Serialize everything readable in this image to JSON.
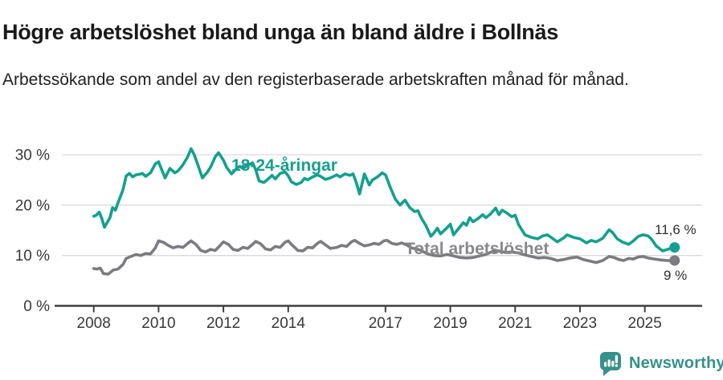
{
  "header": {
    "title": "Högre arbetslöshet bland unga än bland äldre i Bollnäs",
    "subtitle": "Arbetssökande som andel av den registerbaserade arbetskraften månad för månad."
  },
  "footer": {
    "brand": "Newsworthy",
    "brand_color": "#35918a"
  },
  "colors": {
    "accent_teal": "#13a08f",
    "line_gray": "#7b7b80",
    "grid": "#d9d9d9",
    "axis": "#3f3f3f",
    "tick_text": "#383838"
  },
  "chart_data": {
    "type": "line",
    "title": "Högre arbetslöshet bland unga än bland äldre i Bollnäs",
    "xlabel": "",
    "ylabel": "",
    "unit": "%",
    "grid": "horizontal",
    "legend_position": "inline-labels",
    "x_axis": {
      "min": 2007.7,
      "max": 2026.4,
      "ticks": [
        {
          "v": 2008,
          "label": "2008"
        },
        {
          "v": 2010,
          "label": "2010"
        },
        {
          "v": 2012,
          "label": "2012"
        },
        {
          "v": 2014,
          "label": "2014"
        },
        {
          "v": 2017,
          "label": "2017"
        },
        {
          "v": 2019,
          "label": "2019"
        },
        {
          "v": 2021,
          "label": "2021"
        },
        {
          "v": 2023,
          "label": "2023"
        },
        {
          "v": 2025,
          "label": "2025"
        }
      ]
    },
    "y_axis": {
      "min": 0,
      "max": 33,
      "ticks": [
        {
          "v": 0,
          "label": "0 %"
        },
        {
          "v": 10,
          "label": "10 %"
        },
        {
          "v": 20,
          "label": "20 %"
        },
        {
          "v": 30,
          "label": "30 %"
        }
      ]
    },
    "series": [
      {
        "name": "Total arbetslöshet",
        "color": "#7b7b80",
        "end_label": "9 %",
        "end_value": 9.0,
        "points": [
          [
            2008.0,
            7.4
          ],
          [
            2008.1,
            7.3
          ],
          [
            2008.2,
            7.5
          ],
          [
            2008.3,
            6.4
          ],
          [
            2008.45,
            6.3
          ],
          [
            2008.6,
            7.1
          ],
          [
            2008.75,
            7.3
          ],
          [
            2008.9,
            8.2
          ],
          [
            2009.0,
            9.4
          ],
          [
            2009.15,
            9.8
          ],
          [
            2009.3,
            10.2
          ],
          [
            2009.45,
            10.0
          ],
          [
            2009.6,
            10.4
          ],
          [
            2009.75,
            10.3
          ],
          [
            2009.9,
            11.5
          ],
          [
            2010.0,
            12.9
          ],
          [
            2010.15,
            12.6
          ],
          [
            2010.3,
            12.0
          ],
          [
            2010.45,
            11.5
          ],
          [
            2010.6,
            11.8
          ],
          [
            2010.75,
            11.6
          ],
          [
            2010.9,
            12.4
          ],
          [
            2011.0,
            12.9
          ],
          [
            2011.15,
            12.2
          ],
          [
            2011.3,
            11.0
          ],
          [
            2011.45,
            10.7
          ],
          [
            2011.6,
            11.2
          ],
          [
            2011.75,
            11.0
          ],
          [
            2011.9,
            12.0
          ],
          [
            2012.0,
            12.7
          ],
          [
            2012.15,
            12.2
          ],
          [
            2012.3,
            11.2
          ],
          [
            2012.45,
            11.0
          ],
          [
            2012.6,
            11.6
          ],
          [
            2012.75,
            11.4
          ],
          [
            2012.9,
            12.2
          ],
          [
            2013.0,
            12.8
          ],
          [
            2013.15,
            12.3
          ],
          [
            2013.3,
            11.3
          ],
          [
            2013.45,
            11.1
          ],
          [
            2013.6,
            11.8
          ],
          [
            2013.75,
            11.6
          ],
          [
            2013.9,
            12.6
          ],
          [
            2014.0,
            12.9
          ],
          [
            2014.1,
            12.2
          ],
          [
            2014.3,
            11.0
          ],
          [
            2014.45,
            10.9
          ],
          [
            2014.6,
            11.6
          ],
          [
            2014.75,
            11.5
          ],
          [
            2014.9,
            12.4
          ],
          [
            2015.0,
            12.8
          ],
          [
            2015.15,
            12.1
          ],
          [
            2015.3,
            11.4
          ],
          [
            2015.5,
            11.6
          ],
          [
            2015.65,
            12.0
          ],
          [
            2015.8,
            11.8
          ],
          [
            2015.95,
            12.7
          ],
          [
            2016.05,
            13.0
          ],
          [
            2016.2,
            12.4
          ],
          [
            2016.35,
            11.9
          ],
          [
            2016.5,
            12.1
          ],
          [
            2016.65,
            12.4
          ],
          [
            2016.8,
            12.2
          ],
          [
            2016.95,
            12.9
          ],
          [
            2017.05,
            13.0
          ],
          [
            2017.2,
            12.4
          ],
          [
            2017.35,
            12.2
          ],
          [
            2017.5,
            12.5
          ],
          [
            2017.65,
            12.1
          ],
          [
            2017.8,
            11.5
          ],
          [
            2017.95,
            11.3
          ],
          [
            2018.1,
            11.0
          ],
          [
            2018.3,
            10.3
          ],
          [
            2018.5,
            10.0
          ],
          [
            2018.7,
            9.9
          ],
          [
            2018.9,
            10.2
          ],
          [
            2019.1,
            9.9
          ],
          [
            2019.3,
            9.6
          ],
          [
            2019.5,
            9.5
          ],
          [
            2019.7,
            9.6
          ],
          [
            2019.9,
            9.9
          ],
          [
            2020.1,
            10.2
          ],
          [
            2020.3,
            10.8
          ],
          [
            2020.5,
            10.9
          ],
          [
            2020.7,
            10.6
          ],
          [
            2020.9,
            10.7
          ],
          [
            2021.1,
            10.5
          ],
          [
            2021.3,
            10.1
          ],
          [
            2021.5,
            9.8
          ],
          [
            2021.7,
            9.5
          ],
          [
            2021.9,
            9.6
          ],
          [
            2022.1,
            9.4
          ],
          [
            2022.3,
            9.0
          ],
          [
            2022.5,
            9.2
          ],
          [
            2022.7,
            9.5
          ],
          [
            2022.9,
            9.7
          ],
          [
            2023.1,
            9.2
          ],
          [
            2023.3,
            8.9
          ],
          [
            2023.5,
            8.6
          ],
          [
            2023.7,
            9.0
          ],
          [
            2023.9,
            9.8
          ],
          [
            2024.05,
            9.6
          ],
          [
            2024.2,
            9.2
          ],
          [
            2024.35,
            9.0
          ],
          [
            2024.5,
            9.4
          ],
          [
            2024.65,
            9.3
          ],
          [
            2024.8,
            9.7
          ],
          [
            2024.95,
            9.8
          ],
          [
            2025.1,
            9.5
          ],
          [
            2025.3,
            9.3
          ],
          [
            2025.5,
            9.1
          ],
          [
            2025.7,
            9.0
          ],
          [
            2025.92,
            9.0
          ]
        ]
      },
      {
        "name": "18-24-åringar",
        "color": "#13a08f",
        "end_label": "11,6 %",
        "end_value": 11.6,
        "points": [
          [
            2008.0,
            17.8
          ],
          [
            2008.08,
            18.0
          ],
          [
            2008.17,
            18.6
          ],
          [
            2008.25,
            17.3
          ],
          [
            2008.33,
            15.6
          ],
          [
            2008.5,
            17.5
          ],
          [
            2008.58,
            19.5
          ],
          [
            2008.67,
            19.0
          ],
          [
            2008.75,
            20.5
          ],
          [
            2008.9,
            23.0
          ],
          [
            2009.0,
            25.8
          ],
          [
            2009.1,
            26.3
          ],
          [
            2009.2,
            25.6
          ],
          [
            2009.3,
            26.0
          ],
          [
            2009.4,
            26.1
          ],
          [
            2009.5,
            26.3
          ],
          [
            2009.6,
            25.7
          ],
          [
            2009.75,
            26.4
          ],
          [
            2009.9,
            28.2
          ],
          [
            2010.0,
            28.6
          ],
          [
            2010.1,
            27.0
          ],
          [
            2010.2,
            25.4
          ],
          [
            2010.35,
            27.3
          ],
          [
            2010.5,
            26.4
          ],
          [
            2010.6,
            26.8
          ],
          [
            2010.75,
            28.0
          ],
          [
            2010.9,
            29.6
          ],
          [
            2011.0,
            31.2
          ],
          [
            2011.1,
            30.0
          ],
          [
            2011.25,
            27.3
          ],
          [
            2011.35,
            25.4
          ],
          [
            2011.5,
            26.5
          ],
          [
            2011.6,
            27.5
          ],
          [
            2011.75,
            29.6
          ],
          [
            2011.85,
            30.4
          ],
          [
            2012.0,
            28.9
          ],
          [
            2012.1,
            27.5
          ],
          [
            2012.25,
            26.2
          ],
          [
            2012.4,
            27.2
          ],
          [
            2012.5,
            27.7
          ],
          [
            2012.6,
            27.3
          ],
          [
            2012.75,
            27.9
          ],
          [
            2012.9,
            28.4
          ],
          [
            2013.0,
            27.0
          ],
          [
            2013.1,
            24.8
          ],
          [
            2013.25,
            24.5
          ],
          [
            2013.4,
            25.3
          ],
          [
            2013.5,
            25.9
          ],
          [
            2013.6,
            25.2
          ],
          [
            2013.75,
            26.3
          ],
          [
            2013.9,
            26.6
          ],
          [
            2014.0,
            25.8
          ],
          [
            2014.1,
            24.6
          ],
          [
            2014.25,
            24.1
          ],
          [
            2014.4,
            24.5
          ],
          [
            2014.5,
            25.3
          ],
          [
            2014.6,
            25.0
          ],
          [
            2014.75,
            25.6
          ],
          [
            2014.9,
            26.0
          ],
          [
            2015.0,
            25.7
          ],
          [
            2015.15,
            25.1
          ],
          [
            2015.3,
            25.4
          ],
          [
            2015.5,
            26.0
          ],
          [
            2015.6,
            25.6
          ],
          [
            2015.75,
            26.2
          ],
          [
            2015.9,
            25.9
          ],
          [
            2016.0,
            26.2
          ],
          [
            2016.1,
            24.5
          ],
          [
            2016.2,
            22.2
          ],
          [
            2016.35,
            26.2
          ],
          [
            2016.5,
            24.0
          ],
          [
            2016.6,
            25.0
          ],
          [
            2016.75,
            25.6
          ],
          [
            2016.9,
            26.4
          ],
          [
            2017.0,
            26.0
          ],
          [
            2017.15,
            23.5
          ],
          [
            2017.3,
            21.2
          ],
          [
            2017.45,
            20.0
          ],
          [
            2017.6,
            21.0
          ],
          [
            2017.75,
            19.5
          ],
          [
            2017.9,
            18.7
          ],
          [
            2018.0,
            18.9
          ],
          [
            2018.1,
            17.5
          ],
          [
            2018.25,
            15.9
          ],
          [
            2018.4,
            13.8
          ],
          [
            2018.5,
            14.5
          ],
          [
            2018.6,
            15.4
          ],
          [
            2018.7,
            14.3
          ],
          [
            2018.85,
            15.2
          ],
          [
            2019.0,
            16.2
          ],
          [
            2019.1,
            14.1
          ],
          [
            2019.25,
            15.3
          ],
          [
            2019.4,
            16.5
          ],
          [
            2019.5,
            16.0
          ],
          [
            2019.6,
            17.5
          ],
          [
            2019.7,
            16.7
          ],
          [
            2019.85,
            17.3
          ],
          [
            2020.0,
            18.1
          ],
          [
            2020.1,
            17.5
          ],
          [
            2020.25,
            18.3
          ],
          [
            2020.4,
            19.4
          ],
          [
            2020.5,
            18.1
          ],
          [
            2020.6,
            19.0
          ],
          [
            2020.75,
            18.4
          ],
          [
            2020.9,
            17.7
          ],
          [
            2021.0,
            18.0
          ],
          [
            2021.1,
            16.2
          ],
          [
            2021.3,
            14.1
          ],
          [
            2021.5,
            13.6
          ],
          [
            2021.7,
            13.3
          ],
          [
            2021.85,
            13.9
          ],
          [
            2022.0,
            14.1
          ],
          [
            2022.15,
            13.4
          ],
          [
            2022.3,
            12.7
          ],
          [
            2022.5,
            13.5
          ],
          [
            2022.6,
            14.1
          ],
          [
            2022.8,
            13.6
          ],
          [
            2023.0,
            13.3
          ],
          [
            2023.2,
            12.5
          ],
          [
            2023.35,
            13.0
          ],
          [
            2023.5,
            12.7
          ],
          [
            2023.7,
            13.4
          ],
          [
            2023.9,
            15.1
          ],
          [
            2024.0,
            14.6
          ],
          [
            2024.15,
            13.3
          ],
          [
            2024.3,
            12.7
          ],
          [
            2024.5,
            12.2
          ],
          [
            2024.65,
            12.9
          ],
          [
            2024.8,
            13.8
          ],
          [
            2024.95,
            14.1
          ],
          [
            2025.1,
            13.9
          ],
          [
            2025.2,
            13.3
          ],
          [
            2025.35,
            11.9
          ],
          [
            2025.55,
            10.9
          ],
          [
            2025.75,
            11.3
          ],
          [
            2025.92,
            11.6
          ]
        ]
      }
    ]
  }
}
